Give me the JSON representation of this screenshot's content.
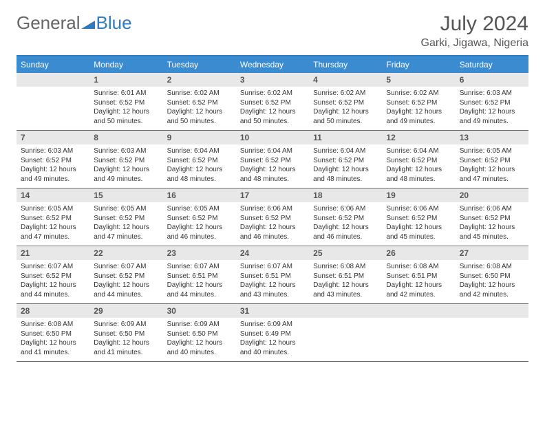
{
  "logo": {
    "part1": "General",
    "part2": "Blue"
  },
  "title": "July 2024",
  "location": "Garki, Jigawa, Nigeria",
  "colors": {
    "header_bg": "#3b8bd0",
    "border": "#2f7bbf",
    "daynum_bg": "#e8e8e8",
    "text": "#333333",
    "title_text": "#555555"
  },
  "day_headers": [
    "Sunday",
    "Monday",
    "Tuesday",
    "Wednesday",
    "Thursday",
    "Friday",
    "Saturday"
  ],
  "weeks": [
    {
      "nums": [
        "",
        "1",
        "2",
        "3",
        "4",
        "5",
        "6"
      ],
      "cells": [
        {
          "sunrise": "",
          "sunset": "",
          "daylight": ""
        },
        {
          "sunrise": "Sunrise: 6:01 AM",
          "sunset": "Sunset: 6:52 PM",
          "daylight": "Daylight: 12 hours and 50 minutes."
        },
        {
          "sunrise": "Sunrise: 6:02 AM",
          "sunset": "Sunset: 6:52 PM",
          "daylight": "Daylight: 12 hours and 50 minutes."
        },
        {
          "sunrise": "Sunrise: 6:02 AM",
          "sunset": "Sunset: 6:52 PM",
          "daylight": "Daylight: 12 hours and 50 minutes."
        },
        {
          "sunrise": "Sunrise: 6:02 AM",
          "sunset": "Sunset: 6:52 PM",
          "daylight": "Daylight: 12 hours and 50 minutes."
        },
        {
          "sunrise": "Sunrise: 6:02 AM",
          "sunset": "Sunset: 6:52 PM",
          "daylight": "Daylight: 12 hours and 49 minutes."
        },
        {
          "sunrise": "Sunrise: 6:03 AM",
          "sunset": "Sunset: 6:52 PM",
          "daylight": "Daylight: 12 hours and 49 minutes."
        }
      ]
    },
    {
      "nums": [
        "7",
        "8",
        "9",
        "10",
        "11",
        "12",
        "13"
      ],
      "cells": [
        {
          "sunrise": "Sunrise: 6:03 AM",
          "sunset": "Sunset: 6:52 PM",
          "daylight": "Daylight: 12 hours and 49 minutes."
        },
        {
          "sunrise": "Sunrise: 6:03 AM",
          "sunset": "Sunset: 6:52 PM",
          "daylight": "Daylight: 12 hours and 49 minutes."
        },
        {
          "sunrise": "Sunrise: 6:04 AM",
          "sunset": "Sunset: 6:52 PM",
          "daylight": "Daylight: 12 hours and 48 minutes."
        },
        {
          "sunrise": "Sunrise: 6:04 AM",
          "sunset": "Sunset: 6:52 PM",
          "daylight": "Daylight: 12 hours and 48 minutes."
        },
        {
          "sunrise": "Sunrise: 6:04 AM",
          "sunset": "Sunset: 6:52 PM",
          "daylight": "Daylight: 12 hours and 48 minutes."
        },
        {
          "sunrise": "Sunrise: 6:04 AM",
          "sunset": "Sunset: 6:52 PM",
          "daylight": "Daylight: 12 hours and 48 minutes."
        },
        {
          "sunrise": "Sunrise: 6:05 AM",
          "sunset": "Sunset: 6:52 PM",
          "daylight": "Daylight: 12 hours and 47 minutes."
        }
      ]
    },
    {
      "nums": [
        "14",
        "15",
        "16",
        "17",
        "18",
        "19",
        "20"
      ],
      "cells": [
        {
          "sunrise": "Sunrise: 6:05 AM",
          "sunset": "Sunset: 6:52 PM",
          "daylight": "Daylight: 12 hours and 47 minutes."
        },
        {
          "sunrise": "Sunrise: 6:05 AM",
          "sunset": "Sunset: 6:52 PM",
          "daylight": "Daylight: 12 hours and 47 minutes."
        },
        {
          "sunrise": "Sunrise: 6:05 AM",
          "sunset": "Sunset: 6:52 PM",
          "daylight": "Daylight: 12 hours and 46 minutes."
        },
        {
          "sunrise": "Sunrise: 6:06 AM",
          "sunset": "Sunset: 6:52 PM",
          "daylight": "Daylight: 12 hours and 46 minutes."
        },
        {
          "sunrise": "Sunrise: 6:06 AM",
          "sunset": "Sunset: 6:52 PM",
          "daylight": "Daylight: 12 hours and 46 minutes."
        },
        {
          "sunrise": "Sunrise: 6:06 AM",
          "sunset": "Sunset: 6:52 PM",
          "daylight": "Daylight: 12 hours and 45 minutes."
        },
        {
          "sunrise": "Sunrise: 6:06 AM",
          "sunset": "Sunset: 6:52 PM",
          "daylight": "Daylight: 12 hours and 45 minutes."
        }
      ]
    },
    {
      "nums": [
        "21",
        "22",
        "23",
        "24",
        "25",
        "26",
        "27"
      ],
      "cells": [
        {
          "sunrise": "Sunrise: 6:07 AM",
          "sunset": "Sunset: 6:52 PM",
          "daylight": "Daylight: 12 hours and 44 minutes."
        },
        {
          "sunrise": "Sunrise: 6:07 AM",
          "sunset": "Sunset: 6:52 PM",
          "daylight": "Daylight: 12 hours and 44 minutes."
        },
        {
          "sunrise": "Sunrise: 6:07 AM",
          "sunset": "Sunset: 6:51 PM",
          "daylight": "Daylight: 12 hours and 44 minutes."
        },
        {
          "sunrise": "Sunrise: 6:07 AM",
          "sunset": "Sunset: 6:51 PM",
          "daylight": "Daylight: 12 hours and 43 minutes."
        },
        {
          "sunrise": "Sunrise: 6:08 AM",
          "sunset": "Sunset: 6:51 PM",
          "daylight": "Daylight: 12 hours and 43 minutes."
        },
        {
          "sunrise": "Sunrise: 6:08 AM",
          "sunset": "Sunset: 6:51 PM",
          "daylight": "Daylight: 12 hours and 42 minutes."
        },
        {
          "sunrise": "Sunrise: 6:08 AM",
          "sunset": "Sunset: 6:50 PM",
          "daylight": "Daylight: 12 hours and 42 minutes."
        }
      ]
    },
    {
      "nums": [
        "28",
        "29",
        "30",
        "31",
        "",
        "",
        ""
      ],
      "cells": [
        {
          "sunrise": "Sunrise: 6:08 AM",
          "sunset": "Sunset: 6:50 PM",
          "daylight": "Daylight: 12 hours and 41 minutes."
        },
        {
          "sunrise": "Sunrise: 6:09 AM",
          "sunset": "Sunset: 6:50 PM",
          "daylight": "Daylight: 12 hours and 41 minutes."
        },
        {
          "sunrise": "Sunrise: 6:09 AM",
          "sunset": "Sunset: 6:50 PM",
          "daylight": "Daylight: 12 hours and 40 minutes."
        },
        {
          "sunrise": "Sunrise: 6:09 AM",
          "sunset": "Sunset: 6:49 PM",
          "daylight": "Daylight: 12 hours and 40 minutes."
        },
        {
          "sunrise": "",
          "sunset": "",
          "daylight": ""
        },
        {
          "sunrise": "",
          "sunset": "",
          "daylight": ""
        },
        {
          "sunrise": "",
          "sunset": "",
          "daylight": ""
        }
      ]
    }
  ]
}
